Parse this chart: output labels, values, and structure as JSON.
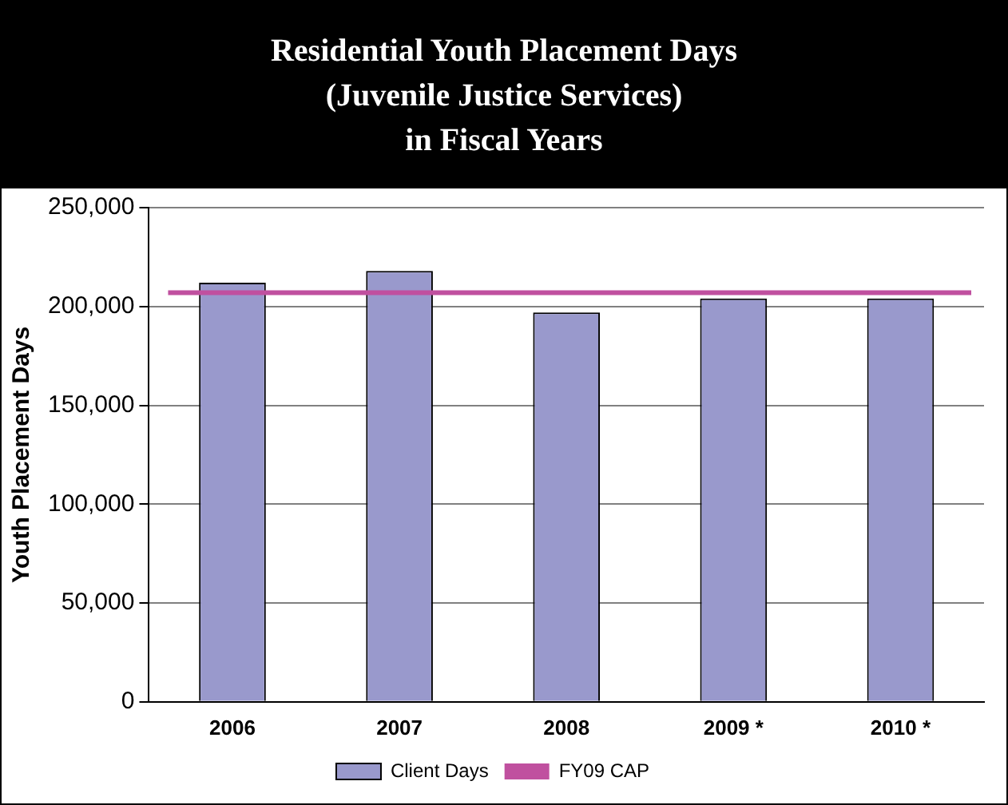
{
  "chart_data": {
    "type": "bar",
    "title": "Residential Youth Placement Days\n(Juvenile Justice Services)\nin Fiscal Years",
    "ylabel": "Youth Placement Days",
    "categories": [
      "2006",
      "2007",
      "2008",
      "2009 *",
      "2010 *"
    ],
    "series": [
      {
        "name": "Client Days",
        "color": "#9999cc",
        "values": [
          212000,
          218000,
          197000,
          204000,
          204000
        ]
      }
    ],
    "ref_lines": [
      {
        "axis": "y",
        "value": 207000,
        "label": "FY09 CAP",
        "color": "#c0509f"
      }
    ],
    "ylim": [
      0,
      250000
    ],
    "yticks": [
      0,
      {
        "value": 50000,
        "label": "50,000"
      },
      {
        "value": 100000,
        "label": "100,000"
      },
      {
        "value": 150000,
        "label": "150,000"
      },
      {
        "value": 200000,
        "label": "200,000"
      },
      {
        "value": 250000,
        "label": "250,000"
      }
    ],
    "grid": "y",
    "legend": "bottom"
  }
}
